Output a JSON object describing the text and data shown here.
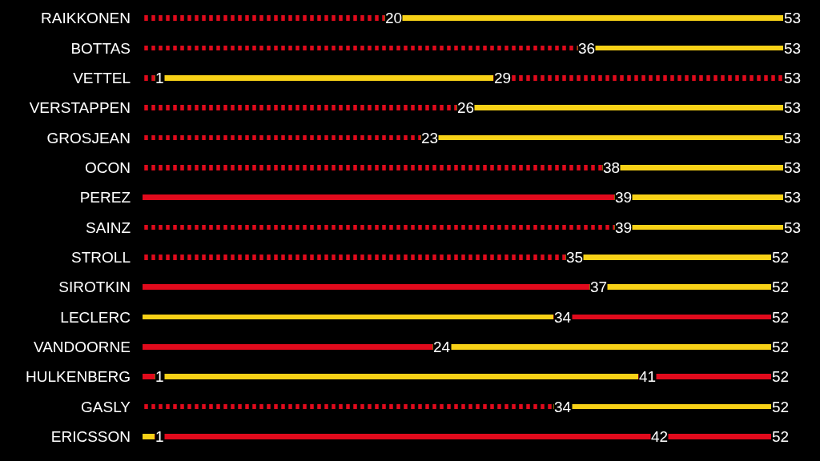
{
  "chart_data": {
    "type": "bar",
    "orientation": "horizontal",
    "stacked": true,
    "tick_labels": "y",
    "categories": [
      "RAIKKONEN",
      "BOTTAS",
      "VETTEL",
      "VERSTAPPEN",
      "GROSJEAN",
      "OCON",
      "PEREZ",
      "SAINZ",
      "STROLL",
      "SIROTKIN",
      "LECLERC",
      "VANDOORNE",
      "HULKENBERG",
      "GASLY",
      "ERICSSON"
    ],
    "series": [
      {
        "color": "#e10a1c",
        "line_style": "dotted",
        "values": [
          20,
          36,
          1,
          26,
          23,
          38,
          null,
          39,
          35,
          null,
          null,
          null,
          null,
          34,
          null
        ],
        "value_labels": [
          "20",
          "36",
          "1",
          "26",
          "23",
          "38",
          null,
          "39",
          "35",
          null,
          null,
          null,
          null,
          "34",
          null
        ]
      },
      {
        "colors": [
          null,
          null,
          null,
          null,
          null,
          null,
          "#e10a1c",
          null,
          null,
          "#e10a1c",
          "#f7d117",
          "#e10a1c",
          "#e10a1c",
          null,
          "#f7d117"
        ],
        "values": [
          null,
          null,
          null,
          null,
          null,
          null,
          39,
          null,
          null,
          37,
          34,
          24,
          1,
          null,
          1
        ],
        "value_labels": [
          null,
          null,
          null,
          null,
          null,
          null,
          "39",
          null,
          null,
          "37",
          "34",
          "24",
          "1",
          null,
          "1"
        ]
      },
      {
        "colors": [
          "#f7d117",
          "#f7d117",
          "#f7d117",
          "#f7d117",
          "#f7d117",
          "#f7d117",
          "#f7d117",
          "#f7d117",
          "#f7d117",
          "#f7d117",
          "#e10a1c",
          "#f7d117",
          "#f7d117",
          "#f7d117",
          "#e10a1c"
        ],
        "values": [
          33,
          17,
          28,
          27,
          30,
          15,
          14,
          14,
          17,
          15,
          18,
          28,
          40,
          18,
          41
        ]
      },
      {
        "color": "#e10a1c",
        "values": [
          null,
          null,
          null,
          null,
          null,
          null,
          null,
          null,
          null,
          null,
          null,
          null,
          11,
          null,
          10
        ]
      },
      {
        "color": "#e10a1c",
        "line_style": "dotted",
        "values": [
          null,
          null,
          24,
          null,
          null,
          null,
          null,
          null,
          null,
          null,
          null,
          null,
          null,
          null,
          null
        ]
      }
    ],
    "totals": [
      "53",
      "53",
      "53",
      "53",
      "53",
      "53",
      "53",
      "53",
      "52",
      "52",
      "52",
      "52",
      "52",
      "52",
      "52"
    ],
    "annotations": [
      {
        "text": "29",
        "x": 29,
        "y": "VETTEL"
      },
      {
        "text": "41",
        "x": 41,
        "y": "HULKENBERG"
      },
      {
        "text": "42",
        "x": 42,
        "y": "ERICSSON"
      }
    ]
  }
}
